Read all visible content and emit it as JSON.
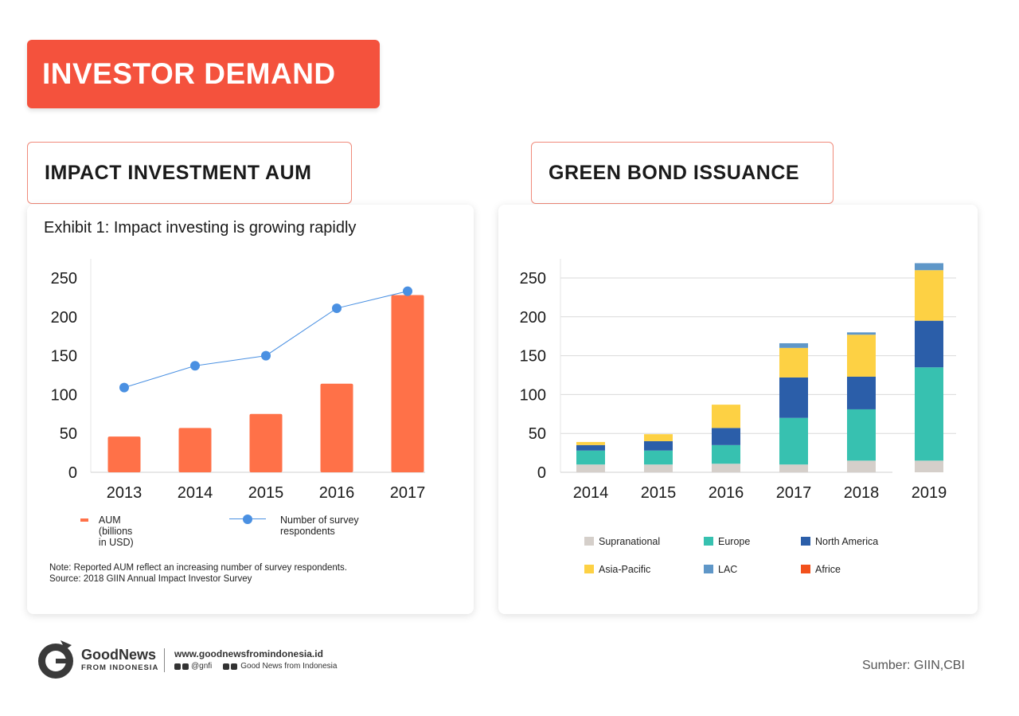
{
  "banner": {
    "title": "INVESTOR DEMAND"
  },
  "left_section": {
    "title": "IMPACT INVESTMENT AUM",
    "exhibit": "Exhibit 1: Impact investing is growing rapidly",
    "legend": {
      "bar": "AUM (billions in USD)",
      "line": "Number of survey respondents"
    },
    "note_line1": "Note: Reported AUM reflect an increasing number of survey respondents.",
    "note_line2": "Source: 2018 GIIN Annual Impact Investor Survey"
  },
  "right_section": {
    "title": "GREEN BOND ISSUANCE"
  },
  "chart_data": [
    {
      "type": "bar",
      "categories": [
        "2013",
        "2014",
        "2015",
        "2016",
        "2017"
      ],
      "series": [
        {
          "name": "AUM (billions in USD)",
          "type": "bar",
          "color": "#ff7148",
          "values": [
            46,
            57,
            75,
            114,
            228
          ]
        },
        {
          "name": "Number of survey respondents",
          "type": "line",
          "color": "#4a90e2",
          "values": [
            109,
            137,
            150,
            211,
            233
          ]
        }
      ],
      "yticks": [
        0,
        50,
        100,
        150,
        200,
        250
      ],
      "ylim": [
        0,
        270
      ],
      "grid": false,
      "legend_position": "bottom"
    },
    {
      "type": "bar",
      "stacked": true,
      "categories": [
        "2014",
        "2015",
        "2016",
        "2017",
        "2018",
        "2019"
      ],
      "series": [
        {
          "name": "Supranational",
          "color": "#d5cfca",
          "values": [
            10,
            10,
            11,
            10,
            15,
            15
          ]
        },
        {
          "name": "Europe",
          "color": "#37c1b0",
          "values": [
            18,
            18,
            24,
            60,
            66,
            120
          ]
        },
        {
          "name": "North America",
          "color": "#2b5ea9",
          "values": [
            7,
            12,
            22,
            52,
            42,
            60
          ]
        },
        {
          "name": "Asia-Pacific",
          "color": "#fdd144",
          "values": [
            4,
            9,
            30,
            38,
            54,
            65
          ]
        },
        {
          "name": "LAC",
          "color": "#5f97c8",
          "values": [
            0,
            0,
            0,
            6,
            3,
            9
          ]
        },
        {
          "name": "Africe",
          "color": "#f2511c",
          "values": [
            0,
            0,
            0,
            0,
            0,
            0
          ]
        }
      ],
      "yticks": [
        0,
        50,
        100,
        150,
        200,
        250
      ],
      "ylim": [
        0,
        270
      ],
      "grid": true,
      "legend_position": "bottom"
    }
  ],
  "footer": {
    "brand_name": "GoodNews",
    "brand_sub": "FROM INDONESIA",
    "website": "www.goodnewsfromindonesia.id",
    "handle": "@gnfi",
    "channel": "Good News from Indonesia",
    "source": "Sumber: GIIN,CBI"
  }
}
